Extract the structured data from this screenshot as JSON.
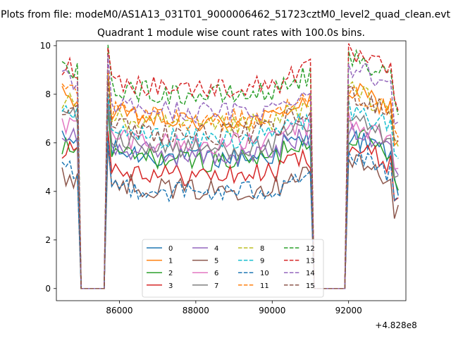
{
  "figure": {
    "suptitle": "Plots from file: modeM0/AS1A13_031T01_9000006462_51723cztM0_level2_quad_clean.evt",
    "title": "Quadrant 1 module wise count rates with 100.0s bins.",
    "offset_label": "+4.828e8"
  },
  "chart_data": {
    "type": "line",
    "title": "Quadrant 1 module wise count rates with 100.0s bins.",
    "xlabel": "",
    "ylabel": "",
    "x_offset": 482800000,
    "xlim": [
      84350,
      93500
    ],
    "ylim": [
      -0.5,
      10.2
    ],
    "xticks": [
      86000,
      88000,
      90000,
      92000
    ],
    "yticks": [
      0,
      2,
      4,
      6,
      8,
      10
    ],
    "xtick_labels": [
      "86000",
      "88000",
      "90000",
      "92000"
    ],
    "ytick_labels": [
      "0",
      "2",
      "4",
      "6",
      "8",
      "10"
    ],
    "grid": false,
    "legend": {
      "placement": "lower center",
      "columns": 4
    },
    "segments": [
      {
        "x_start": 84500,
        "x_end": 84900
      },
      {
        "x_start": 85700,
        "x_end": 91000
      },
      {
        "x_start": 92000,
        "x_end": 93300
      }
    ],
    "gaps": [
      {
        "x_start": 85000,
        "x_end": 85600
      },
      {
        "x_start": 91100,
        "x_end": 91900
      }
    ],
    "series": [
      {
        "name": "0",
        "color": "#1f77b4",
        "dash": "solid",
        "levels": [
          6.1,
          5.7,
          5.4
        ]
      },
      {
        "name": "1",
        "color": "#ff7f0e",
        "dash": "solid",
        "levels": [
          7.9,
          7.2,
          7.3
        ]
      },
      {
        "name": "2",
        "color": "#2ca02c",
        "dash": "solid",
        "levels": [
          5.8,
          5.6,
          5.5
        ]
      },
      {
        "name": "3",
        "color": "#d62728",
        "dash": "solid",
        "levels": [
          5.8,
          5.0,
          5.0
        ]
      },
      {
        "name": "4",
        "color": "#9467bd",
        "dash": "solid",
        "levels": [
          6.3,
          5.8,
          5.8
        ]
      },
      {
        "name": "5",
        "color": "#8c564b",
        "dash": "solid",
        "levels": [
          4.6,
          4.4,
          4.4
        ]
      },
      {
        "name": "6",
        "color": "#e377c2",
        "dash": "solid",
        "levels": [
          6.7,
          6.3,
          6.0
        ]
      },
      {
        "name": "7",
        "color": "#7f7f7f",
        "dash": "solid",
        "levels": [
          7.2,
          6.1,
          6.1
        ]
      },
      {
        "name": "8",
        "color": "#bcbd22",
        "dash": "dashed",
        "levels": [
          7.7,
          7.0,
          7.3
        ]
      },
      {
        "name": "9",
        "color": "#17becf",
        "dash": "dashed",
        "levels": [
          7.1,
          6.5,
          6.5
        ]
      },
      {
        "name": "10",
        "color": "#1f77b4",
        "dash": "dashed",
        "levels": [
          4.8,
          4.3,
          4.6
        ]
      },
      {
        "name": "11",
        "color": "#ff7f0e",
        "dash": "dashed",
        "levels": [
          8.1,
          7.3,
          7.3
        ]
      },
      {
        "name": "12",
        "color": "#2ca02c",
        "dash": "dashed",
        "levels": [
          8.9,
          8.3,
          8.6
        ]
      },
      {
        "name": "13",
        "color": "#d62728",
        "dash": "dashed",
        "levels": [
          9.1,
          8.6,
          8.8
        ]
      },
      {
        "name": "14",
        "color": "#9467bd",
        "dash": "dashed",
        "levels": [
          8.6,
          7.6,
          8.3
        ]
      },
      {
        "name": "15",
        "color": "#8c564b",
        "dash": "dashed",
        "levels": [
          7.6,
          6.7,
          7.2
        ]
      }
    ]
  }
}
